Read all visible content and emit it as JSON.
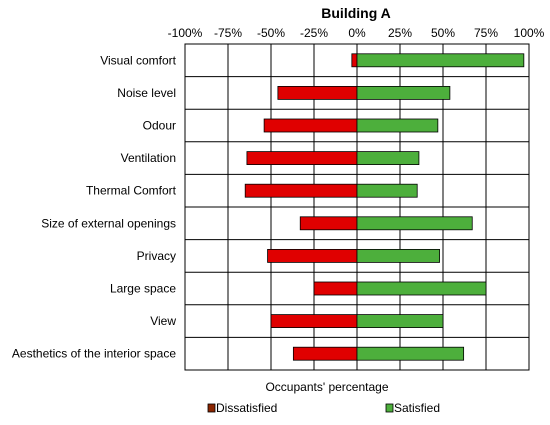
{
  "chart_data": {
    "type": "bar",
    "orientation": "horizontal",
    "title": "Building A",
    "xlabel": "Occupants' percentage",
    "xlim": [
      -100,
      100
    ],
    "x_ticks": [
      "-100%",
      "-75%",
      "-50%",
      "-25%",
      "0%",
      "25%",
      "50%",
      "75%",
      "100%"
    ],
    "grid": true,
    "legend_position": "bottom",
    "categories": [
      "Visual comfort",
      "Noise level",
      "Odour",
      "Ventilation",
      "Thermal Comfort",
      "Size of external openings",
      "Privacy",
      "Large space",
      "View",
      "Aesthetics of the interior space"
    ],
    "series": [
      {
        "name": "Dissatisfied",
        "color": "#e00000",
        "legend_color": "#8b2500",
        "values": [
          -3,
          -46,
          -54,
          -64,
          -65,
          -33,
          -52,
          -25,
          -50,
          -37
        ]
      },
      {
        "name": "Satisfied",
        "color": "#4daf3c",
        "values": [
          97,
          54,
          47,
          36,
          35,
          67,
          48,
          75,
          50,
          62
        ]
      }
    ]
  }
}
